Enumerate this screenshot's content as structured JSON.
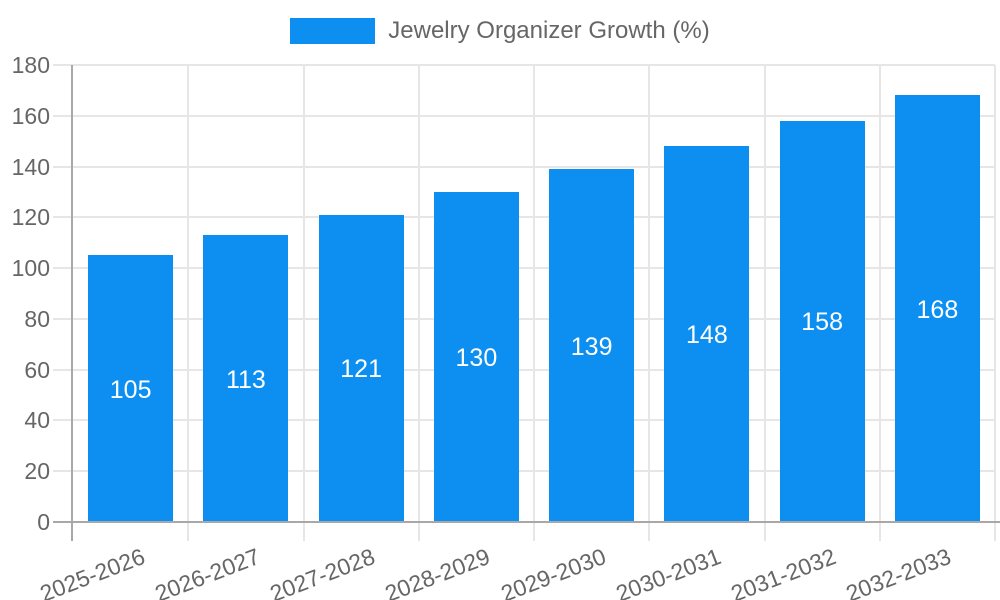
{
  "chart_data": {
    "type": "bar",
    "title": "Jewelry Organizer Growth (%)",
    "categories": [
      "2025-2026",
      "2026-2027",
      "2027-2028",
      "2028-2029",
      "2029-2030",
      "2030-2031",
      "2031-2032",
      "2032-2033"
    ],
    "values": [
      105,
      113,
      121,
      130,
      139,
      148,
      158,
      168
    ],
    "value_labels": [
      "105",
      "113",
      "121",
      "130",
      "139",
      "148",
      "158",
      "168"
    ],
    "xlabel": "",
    "ylabel": "",
    "ylim": [
      0,
      180
    ],
    "ytick_step": 20,
    "yticks": [
      0,
      20,
      40,
      60,
      80,
      100,
      120,
      140,
      160,
      180
    ],
    "grid": true,
    "legend_position": "top",
    "bar_color": "#0d8ff2",
    "value_label_color": "#ffffff",
    "axis_text_color": "#666666",
    "gridline_color": "#e6e6e6",
    "axis_line_color": "#a8a8a8",
    "background_color": "#ffffff"
  },
  "legend": {
    "label": "Jewelry Organizer Growth (%)"
  }
}
